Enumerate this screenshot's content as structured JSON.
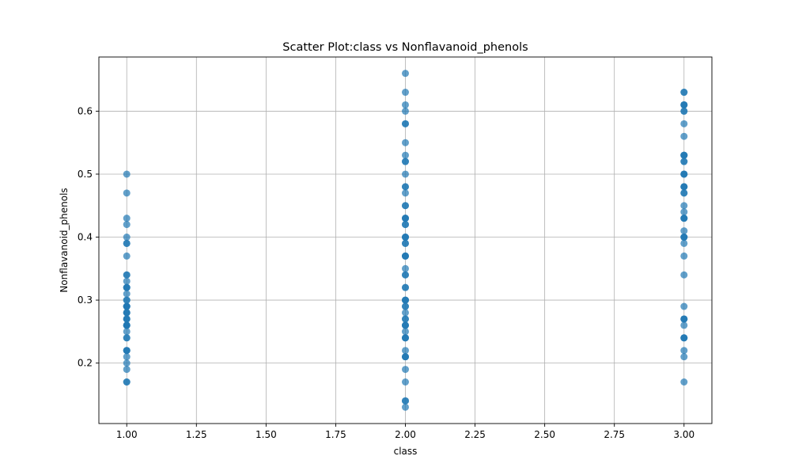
{
  "chart_data": {
    "type": "scatter",
    "title": "Scatter Plot:class vs Nonflavanoid_phenols",
    "xlabel": "class",
    "ylabel": "Nonflavanoid_phenols",
    "xlim": [
      0.9,
      3.1
    ],
    "ylim": [
      0.104,
      0.686
    ],
    "xticks": [
      1.0,
      1.25,
      1.5,
      1.75,
      2.0,
      2.25,
      2.5,
      2.75,
      3.0
    ],
    "xtick_labels": [
      "1.00",
      "1.25",
      "1.50",
      "1.75",
      "2.00",
      "2.25",
      "2.50",
      "2.75",
      "3.00"
    ],
    "yticks": [
      0.2,
      0.3,
      0.4,
      0.5,
      0.6
    ],
    "ytick_labels": [
      "0.2",
      "0.3",
      "0.4",
      "0.5",
      "0.6"
    ],
    "grid": true,
    "color": "#1f77b4",
    "alpha": 0.7,
    "series": [
      {
        "x": [
          1,
          1,
          1,
          1,
          1,
          1,
          1,
          1,
          1,
          1,
          1,
          1,
          1,
          1,
          1,
          1,
          1,
          1,
          1,
          1,
          1,
          1,
          1,
          1,
          1,
          1,
          1,
          1,
          1,
          1,
          1,
          1,
          1,
          1,
          1,
          1,
          1,
          1,
          1,
          1,
          1,
          1,
          2,
          2,
          2,
          2,
          2,
          2,
          2,
          2,
          2,
          2,
          2,
          2,
          2,
          2,
          2,
          2,
          2,
          2,
          2,
          2,
          2,
          2,
          2,
          2,
          2,
          2,
          2,
          2,
          2,
          2,
          2,
          2,
          2,
          2,
          2,
          2,
          2,
          2,
          2,
          2,
          2,
          2,
          2,
          2,
          2,
          2,
          2,
          2,
          2,
          2,
          2,
          2,
          2,
          2,
          2,
          2,
          2,
          2,
          3,
          3,
          3,
          3,
          3,
          3,
          3,
          3,
          3,
          3,
          3,
          3,
          3,
          3,
          3,
          3,
          3,
          3,
          3,
          3,
          3,
          3,
          3,
          3,
          3,
          3,
          3,
          3,
          3,
          3,
          3,
          3,
          3,
          3,
          3,
          3,
          3,
          3,
          3,
          3,
          3,
          3,
          3,
          3,
          3
        ],
        "y": [
          0.5,
          0.47,
          0.43,
          0.42,
          0.4,
          0.39,
          0.39,
          0.37,
          0.34,
          0.34,
          0.33,
          0.32,
          0.32,
          0.31,
          0.3,
          0.3,
          0.29,
          0.29,
          0.29,
          0.28,
          0.28,
          0.27,
          0.27,
          0.27,
          0.26,
          0.26,
          0.26,
          0.25,
          0.24,
          0.24,
          0.22,
          0.22,
          0.22,
          0.21,
          0.2,
          0.19,
          0.17,
          0.17,
          0.29,
          0.28,
          0.26,
          0.32,
          0.66,
          0.63,
          0.61,
          0.6,
          0.58,
          0.58,
          0.55,
          0.53,
          0.52,
          0.52,
          0.5,
          0.48,
          0.48,
          0.47,
          0.45,
          0.45,
          0.43,
          0.43,
          0.42,
          0.42,
          0.4,
          0.4,
          0.39,
          0.39,
          0.37,
          0.37,
          0.35,
          0.34,
          0.34,
          0.32,
          0.32,
          0.3,
          0.3,
          0.29,
          0.29,
          0.28,
          0.27,
          0.27,
          0.26,
          0.26,
          0.25,
          0.24,
          0.24,
          0.22,
          0.21,
          0.21,
          0.19,
          0.17,
          0.14,
          0.14,
          0.13,
          0.43,
          0.4,
          0.37,
          0.3,
          0.26,
          0.24,
          0.21,
          0.63,
          0.63,
          0.61,
          0.61,
          0.6,
          0.6,
          0.58,
          0.56,
          0.53,
          0.53,
          0.52,
          0.52,
          0.5,
          0.5,
          0.48,
          0.48,
          0.47,
          0.47,
          0.45,
          0.44,
          0.43,
          0.43,
          0.41,
          0.4,
          0.4,
          0.39,
          0.37,
          0.34,
          0.29,
          0.27,
          0.27,
          0.26,
          0.24,
          0.24,
          0.22,
          0.21,
          0.17,
          0.53,
          0.5,
          0.43,
          0.4,
          0.27,
          0.24,
          0.61,
          0.48
        ]
      }
    ]
  }
}
